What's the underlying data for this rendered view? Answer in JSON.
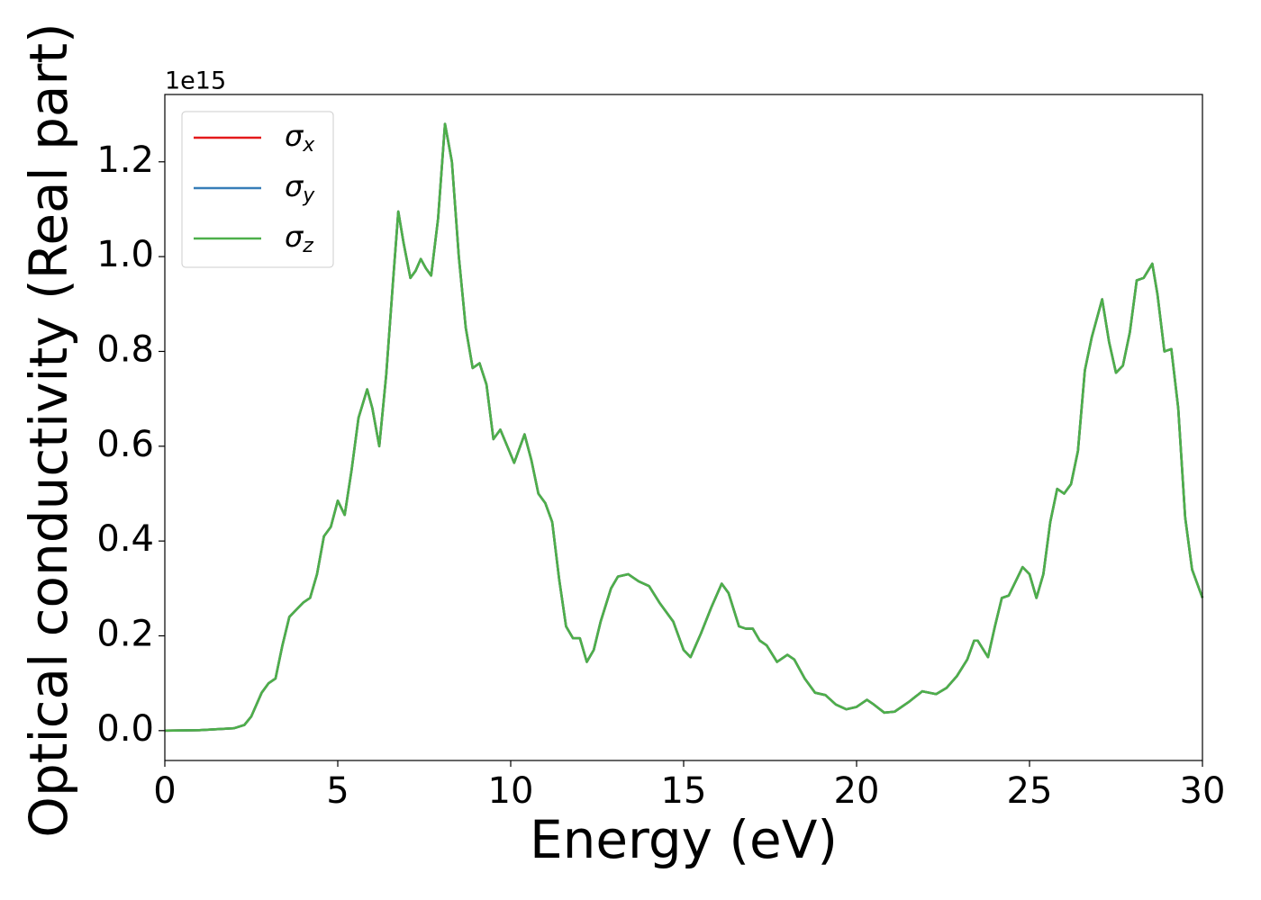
{
  "chart_data": {
    "type": "line",
    "x_label": "Energy (eV)",
    "y_label": "Optical conductivity (Real part)",
    "y_offset_label": "1e15",
    "x": [
      0,
      1,
      2,
      2.3,
      2.5,
      2.8,
      3.0,
      3.2,
      3.4,
      3.6,
      3.8,
      4.0,
      4.2,
      4.4,
      4.6,
      4.8,
      5.0,
      5.2,
      5.4,
      5.6,
      5.85,
      6.0,
      6.2,
      6.4,
      6.6,
      6.75,
      6.9,
      7.1,
      7.25,
      7.4,
      7.55,
      7.7,
      7.9,
      8.1,
      8.3,
      8.5,
      8.7,
      8.9,
      9.1,
      9.3,
      9.5,
      9.7,
      9.9,
      10.1,
      10.4,
      10.6,
      10.8,
      11.0,
      11.2,
      11.4,
      11.6,
      11.8,
      12.0,
      12.2,
      12.4,
      12.6,
      12.9,
      13.1,
      13.4,
      13.7,
      14.0,
      14.3,
      14.7,
      15.0,
      15.2,
      15.5,
      15.8,
      16.1,
      16.3,
      16.6,
      16.8,
      17.0,
      17.2,
      17.4,
      17.7,
      18.0,
      18.2,
      18.5,
      18.8,
      19.1,
      19.4,
      19.7,
      20.0,
      20.3,
      20.5,
      20.8,
      21.1,
      21.5,
      21.9,
      22.3,
      22.6,
      22.9,
      23.2,
      23.4,
      23.5,
      23.8,
      24.0,
      24.2,
      24.4,
      24.8,
      25.0,
      25.2,
      25.4,
      25.6,
      25.8,
      26.0,
      26.2,
      26.4,
      26.6,
      26.8,
      27.1,
      27.3,
      27.5,
      27.7,
      27.9,
      28.1,
      28.3,
      28.55,
      28.7,
      28.9,
      29.1,
      29.3,
      29.5,
      29.7,
      30.0
    ],
    "series": [
      {
        "name": "σx",
        "color": "#e41a1c",
        "values": [
          0,
          0.001,
          0.005,
          0.012,
          0.03,
          0.08,
          0.1,
          0.11,
          0.18,
          0.24,
          0.255,
          0.27,
          0.28,
          0.33,
          0.41,
          0.43,
          0.485,
          0.455,
          0.55,
          0.66,
          0.72,
          0.68,
          0.6,
          0.75,
          0.95,
          1.095,
          1.03,
          0.955,
          0.97,
          0.995,
          0.975,
          0.96,
          1.08,
          1.28,
          1.2,
          1.0,
          0.85,
          0.765,
          0.775,
          0.73,
          0.615,
          0.635,
          0.6,
          0.565,
          0.625,
          0.57,
          0.5,
          0.48,
          0.44,
          0.32,
          0.22,
          0.195,
          0.195,
          0.145,
          0.17,
          0.23,
          0.3,
          0.325,
          0.33,
          0.315,
          0.305,
          0.27,
          0.23,
          0.17,
          0.155,
          0.205,
          0.26,
          0.31,
          0.29,
          0.22,
          0.215,
          0.215,
          0.19,
          0.18,
          0.145,
          0.16,
          0.15,
          0.11,
          0.08,
          0.075,
          0.055,
          0.045,
          0.05,
          0.065,
          0.055,
          0.038,
          0.04,
          0.06,
          0.083,
          0.077,
          0.09,
          0.115,
          0.15,
          0.19,
          0.19,
          0.155,
          0.22,
          0.28,
          0.285,
          0.345,
          0.33,
          0.28,
          0.33,
          0.44,
          0.51,
          0.5,
          0.52,
          0.59,
          0.76,
          0.83,
          0.91,
          0.82,
          0.755,
          0.77,
          0.84,
          0.95,
          0.955,
          0.985,
          0.92,
          0.8,
          0.805,
          0.68,
          0.45,
          0.34,
          0.28
        ]
      },
      {
        "name": "σy",
        "color": "#377eb8",
        "values": [
          0,
          0.001,
          0.005,
          0.012,
          0.03,
          0.08,
          0.1,
          0.11,
          0.18,
          0.24,
          0.255,
          0.27,
          0.28,
          0.33,
          0.41,
          0.43,
          0.485,
          0.455,
          0.55,
          0.66,
          0.72,
          0.68,
          0.6,
          0.75,
          0.95,
          1.095,
          1.03,
          0.955,
          0.97,
          0.995,
          0.975,
          0.96,
          1.08,
          1.28,
          1.2,
          1.0,
          0.85,
          0.765,
          0.775,
          0.73,
          0.615,
          0.635,
          0.6,
          0.565,
          0.625,
          0.57,
          0.5,
          0.48,
          0.44,
          0.32,
          0.22,
          0.195,
          0.195,
          0.145,
          0.17,
          0.23,
          0.3,
          0.325,
          0.33,
          0.315,
          0.305,
          0.27,
          0.23,
          0.17,
          0.155,
          0.205,
          0.26,
          0.31,
          0.29,
          0.22,
          0.215,
          0.215,
          0.19,
          0.18,
          0.145,
          0.16,
          0.15,
          0.11,
          0.08,
          0.075,
          0.055,
          0.045,
          0.05,
          0.065,
          0.055,
          0.038,
          0.04,
          0.06,
          0.083,
          0.077,
          0.09,
          0.115,
          0.15,
          0.19,
          0.19,
          0.155,
          0.22,
          0.28,
          0.285,
          0.345,
          0.33,
          0.28,
          0.33,
          0.44,
          0.51,
          0.5,
          0.52,
          0.59,
          0.76,
          0.83,
          0.91,
          0.82,
          0.755,
          0.77,
          0.84,
          0.95,
          0.955,
          0.985,
          0.92,
          0.8,
          0.805,
          0.68,
          0.45,
          0.34,
          0.28
        ]
      },
      {
        "name": "σz",
        "color": "#4daf4a",
        "values": [
          0,
          0.001,
          0.005,
          0.012,
          0.03,
          0.08,
          0.1,
          0.11,
          0.18,
          0.24,
          0.255,
          0.27,
          0.28,
          0.33,
          0.41,
          0.43,
          0.485,
          0.455,
          0.55,
          0.66,
          0.72,
          0.68,
          0.6,
          0.75,
          0.95,
          1.095,
          1.03,
          0.955,
          0.97,
          0.995,
          0.975,
          0.96,
          1.08,
          1.28,
          1.2,
          1.0,
          0.85,
          0.765,
          0.775,
          0.73,
          0.615,
          0.635,
          0.6,
          0.565,
          0.625,
          0.57,
          0.5,
          0.48,
          0.44,
          0.32,
          0.22,
          0.195,
          0.195,
          0.145,
          0.17,
          0.23,
          0.3,
          0.325,
          0.33,
          0.315,
          0.305,
          0.27,
          0.23,
          0.17,
          0.155,
          0.205,
          0.26,
          0.31,
          0.29,
          0.22,
          0.215,
          0.215,
          0.19,
          0.18,
          0.145,
          0.16,
          0.15,
          0.11,
          0.08,
          0.075,
          0.055,
          0.045,
          0.05,
          0.065,
          0.055,
          0.038,
          0.04,
          0.06,
          0.083,
          0.077,
          0.09,
          0.115,
          0.15,
          0.19,
          0.19,
          0.155,
          0.22,
          0.28,
          0.285,
          0.345,
          0.33,
          0.28,
          0.33,
          0.44,
          0.51,
          0.5,
          0.52,
          0.59,
          0.76,
          0.83,
          0.91,
          0.82,
          0.755,
          0.77,
          0.84,
          0.95,
          0.955,
          0.985,
          0.92,
          0.8,
          0.805,
          0.68,
          0.45,
          0.34,
          0.28
        ]
      }
    ],
    "xlim": [
      0,
      30
    ],
    "xticks": [
      0,
      5,
      10,
      15,
      20,
      25,
      30
    ],
    "ylim": [
      -0.063,
      1.342
    ],
    "yticks": [
      {
        "value": 0,
        "label": "0.0"
      },
      0.2,
      0.4,
      0.6,
      0.8,
      {
        "value": 1,
        "label": "1.0"
      },
      1.2
    ],
    "grid": false,
    "legend": "upper left"
  }
}
